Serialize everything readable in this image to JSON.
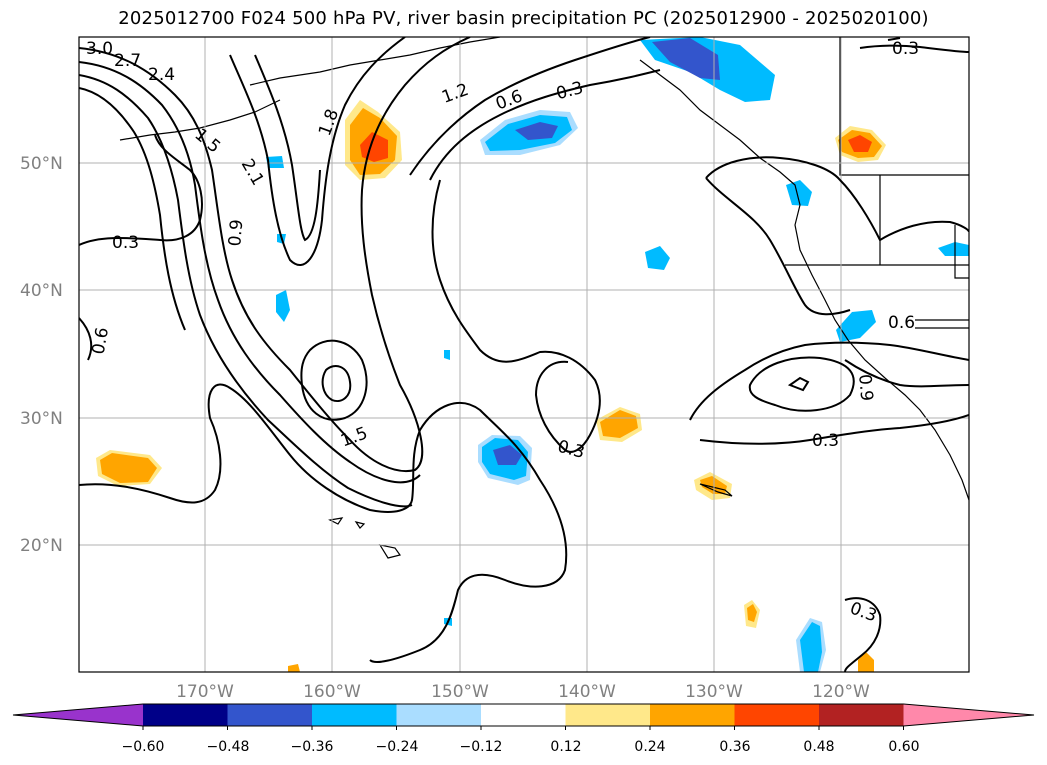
{
  "title": "2025012700 F024 500 hPa PV, river basin precipitation PC (2025012900 - 2025020100)",
  "lat_labels": [
    "50°N",
    "40°N",
    "30°N",
    "20°N"
  ],
  "lon_labels": [
    "170°W",
    "160°W",
    "150°W",
    "140°W",
    "130°W",
    "120°W"
  ],
  "contour_labels": [
    "3.0",
    "2.7",
    "2.4",
    "1.5",
    "2.1",
    "1.8",
    "1.2",
    "0.6",
    "0.3",
    "0.9",
    "0.3",
    "0.6",
    "1.5",
    "0.3",
    "0.3",
    "0.6",
    "0.9",
    "0.3",
    "0.3"
  ],
  "colorbar": {
    "ticks": [
      "−0.60",
      "−0.48",
      "−0.36",
      "−0.24",
      "−0.12",
      "0.12",
      "0.24",
      "0.36",
      "0.48",
      "0.60"
    ],
    "colors": [
      "#9933cc",
      "#000088",
      "#3355cc",
      "#00bbff",
      "#aaddff",
      "#ffffff",
      "#ffe88a",
      "#ffa500",
      "#ff4500",
      "#b22222",
      "#ff88aa"
    ]
  }
}
